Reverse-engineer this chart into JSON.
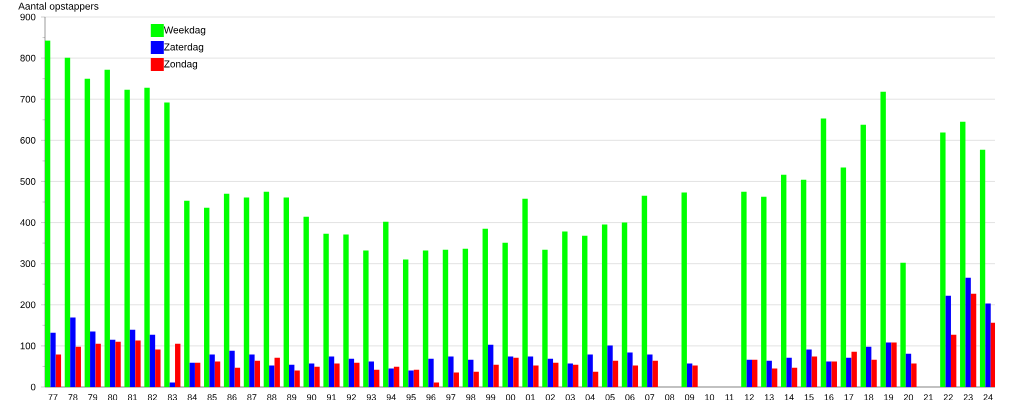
{
  "chart_data": {
    "type": "bar",
    "ylabel": "Aantal opstappers",
    "categories": [
      "77",
      "78",
      "79",
      "80",
      "81",
      "82",
      "83",
      "84",
      "85",
      "86",
      "87",
      "88",
      "89",
      "90",
      "91",
      "92",
      "93",
      "94",
      "95",
      "96",
      "97",
      "98",
      "99",
      "00",
      "01",
      "02",
      "03",
      "04",
      "05",
      "06",
      "07",
      "08",
      "09",
      "10",
      "11",
      "12",
      "13",
      "14",
      "15",
      "16",
      "17",
      "18",
      "19",
      "20",
      "21",
      "22",
      "23",
      "24"
    ],
    "series": [
      {
        "name": "Weekdag",
        "color": "#00ff00",
        "values": [
          843,
          801,
          750,
          772,
          723,
          728,
          692,
          453,
          436,
          470,
          461,
          475,
          461,
          414,
          373,
          371,
          332,
          402,
          310,
          332,
          334,
          336,
          385,
          351,
          458,
          334,
          378,
          368,
          395,
          400,
          465,
          null,
          473,
          null,
          null,
          475,
          463,
          516,
          504,
          653,
          534,
          638,
          718,
          302,
          null,
          619,
          645,
          577
        ]
      },
      {
        "name": "Zaterdag",
        "color": "#0000ff",
        "values": [
          132,
          169,
          135,
          115,
          139,
          127,
          11,
          59,
          79,
          88,
          79,
          52,
          54,
          57,
          74,
          69,
          62,
          45,
          40,
          69,
          74,
          66,
          103,
          74,
          74,
          69,
          57,
          79,
          101,
          84,
          79,
          null,
          57,
          null,
          null,
          66,
          64,
          71,
          91,
          62,
          71,
          98,
          108,
          81,
          null,
          222,
          266,
          203
        ]
      },
      {
        "name": "Zondag",
        "color": "#ff0000",
        "values": [
          79,
          98,
          105,
          110,
          113,
          91,
          105,
          59,
          62,
          47,
          64,
          71,
          40,
          49,
          57,
          59,
          42,
          49,
          42,
          11,
          35,
          37,
          54,
          71,
          52,
          59,
          54,
          37,
          64,
          52,
          64,
          null,
          52,
          null,
          null,
          66,
          45,
          47,
          74,
          62,
          86,
          66,
          108,
          57,
          null,
          127,
          227,
          156
        ]
      }
    ],
    "ylim": [
      0,
      900
    ],
    "yticks": [
      0,
      {
        "value": 50,
        "label": null
      },
      100,
      {
        "value": 150,
        "label": null
      },
      200,
      {
        "value": 250,
        "label": null
      },
      300,
      {
        "value": 350,
        "label": null
      },
      400,
      {
        "value": 450,
        "label": null
      },
      500,
      {
        "value": 550,
        "label": null
      },
      600,
      {
        "value": 650,
        "label": null
      },
      700,
      {
        "value": 750,
        "label": null
      },
      800,
      {
        "value": 850,
        "label": null
      },
      900
    ],
    "grid": "y",
    "legend": "top left"
  }
}
